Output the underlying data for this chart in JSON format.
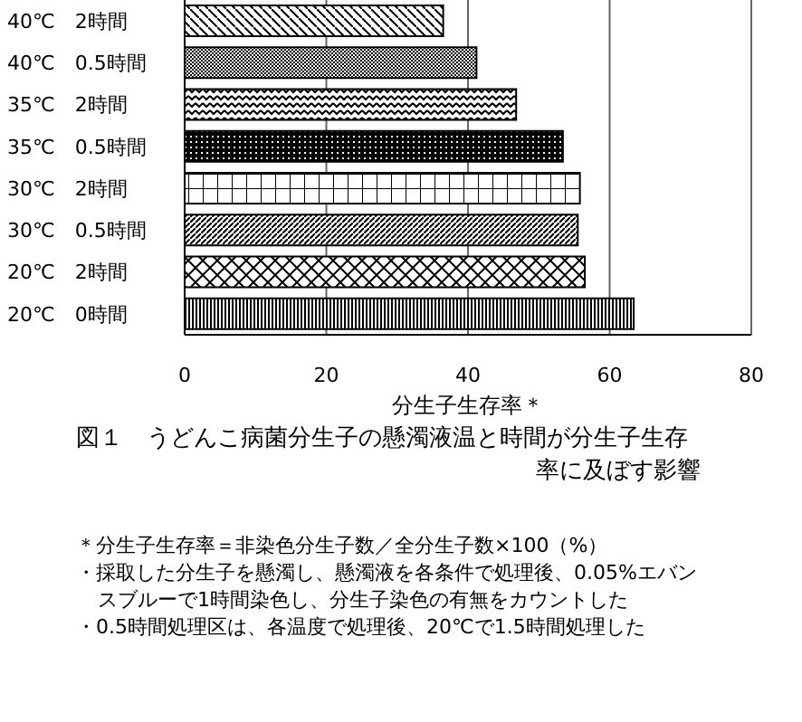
{
  "chart_data": {
    "type": "bar",
    "orientation": "horizontal",
    "title": "図１　うどんこ病菌分生子の懸濁液温と時間が分生子生存率に及ぼす影響",
    "xlabel": "分生子生存率＊",
    "categories": [
      "40℃　2時間",
      "40℃　0.5時間",
      "35℃　2時間",
      "35℃　0.5時間",
      "30℃　2時間",
      "30℃　0.5時間",
      "20℃　2時間",
      "20℃　0時間"
    ],
    "values": [
      36.5,
      41.2,
      46.8,
      53.4,
      55.8,
      55.5,
      56.5,
      63.4
    ],
    "colors": [
      "#000000",
      "#000000",
      "#000000",
      "#000000",
      "#000000",
      "#000000",
      "#000000",
      "#000000"
    ],
    "xlim": [
      0,
      80
    ],
    "xticks": [
      0,
      20,
      40,
      60,
      80
    ],
    "grid": "x",
    "legend": false,
    "annotations": [
      "＊分生子生存率＝非染色分生子数／全分生子数×100（%）",
      "・採取した分生子を懸濁し、懸濁液を各条件で処理後、0.05%エバンスブルーで1時間染色し、分生子染色の有無をカウントした",
      "・0.5時間処理区は、各温度で処理後、20℃で1.5時間処理した"
    ]
  }
}
